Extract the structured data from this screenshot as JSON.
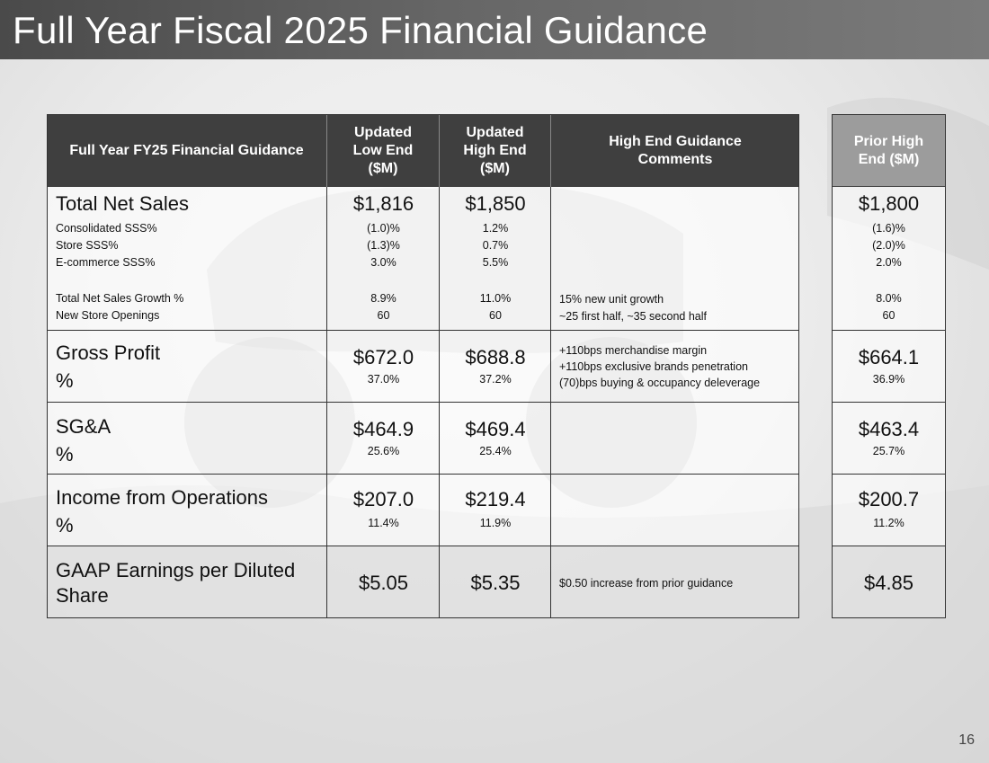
{
  "title": "Full Year Fiscal 2025 Financial Guidance",
  "page_number": "16",
  "headers": {
    "metric": "Full Year FY25 Financial Guidance",
    "low": "Updated Low End ($M)",
    "high": "Updated High End ($M)",
    "comments": "High End Guidance Comments",
    "prior": "Prior High End ($M)"
  },
  "rows": {
    "sales": {
      "label": "Total Net Sales",
      "low": "$1,816",
      "high": "$1,850",
      "prior": "$1,800",
      "sub": [
        {
          "label": "Consolidated SSS%",
          "low": "(1.0)%",
          "high": "1.2%",
          "prior": "(1.6)%"
        },
        {
          "label": "Store SSS%",
          "low": "(1.3)%",
          "high": "0.7%",
          "prior": "(2.0)%"
        },
        {
          "label": "E-commerce SSS%",
          "low": "3.0%",
          "high": "5.5%",
          "prior": "2.0%"
        },
        {
          "label": "Total Net Sales Growth %",
          "low": "8.9%",
          "high": "11.0%",
          "prior": "8.0%",
          "comment": "15% new unit growth"
        },
        {
          "label": "New Store Openings",
          "low": "60",
          "high": "60",
          "prior": "60",
          "comment": "~25 first half, ~35 second half"
        }
      ]
    },
    "gross": {
      "label": "Gross Profit",
      "pct_label": "%",
      "low": "$672.0",
      "low_pct": "37.0%",
      "high": "$688.8",
      "high_pct": "37.2%",
      "prior": "$664.1",
      "prior_pct": "36.9%",
      "comments": [
        "+110bps merchandise margin",
        "+110bps exclusive brands penetration",
        "(70)bps buying & occupancy deleverage"
      ]
    },
    "sga": {
      "label": "SG&A",
      "pct_label": "%",
      "low": "$464.9",
      "low_pct": "25.6%",
      "high": "$469.4",
      "high_pct": "25.4%",
      "prior": "$463.4",
      "prior_pct": "25.7%"
    },
    "income": {
      "label": "Income from Operations",
      "pct_label": "%",
      "low": "$207.0",
      "low_pct": "11.4%",
      "high": "$219.4",
      "high_pct": "11.9%",
      "prior": "$200.7",
      "prior_pct": "11.2%"
    },
    "eps": {
      "label": "GAAP Earnings per Diluted Share",
      "low": "$5.05",
      "high": "$5.35",
      "prior": "$4.85",
      "comment": "$0.50 increase from prior guidance"
    }
  }
}
